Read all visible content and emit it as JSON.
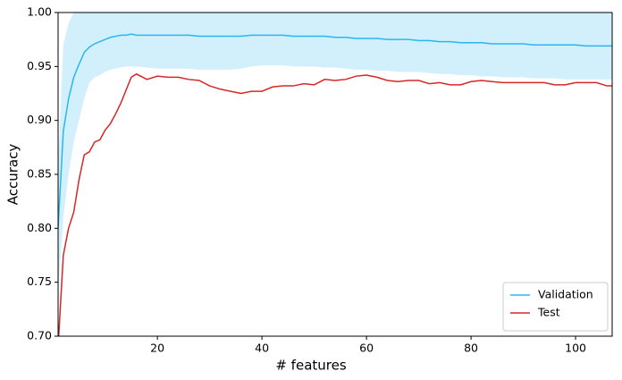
{
  "chart_data": {
    "type": "line",
    "xlabel": "# features",
    "ylabel": "Accuracy",
    "x": [
      1,
      2,
      3,
      4,
      5,
      6,
      7,
      8,
      9,
      10,
      11,
      12,
      13,
      14,
      15,
      16,
      18,
      20,
      22,
      24,
      26,
      28,
      30,
      32,
      34,
      36,
      38,
      40,
      42,
      44,
      46,
      48,
      50,
      52,
      54,
      56,
      58,
      60,
      62,
      64,
      66,
      68,
      70,
      72,
      74,
      76,
      78,
      80,
      82,
      84,
      86,
      88,
      90,
      92,
      94,
      96,
      98,
      100,
      102,
      104,
      106,
      107
    ],
    "xlim": [
      1,
      107
    ],
    "xticks": [
      20,
      40,
      60,
      80,
      100
    ],
    "ylim": [
      0.7,
      1.0
    ],
    "yticks": [
      {
        "value": 0.7,
        "label": "0.70"
      },
      0.75,
      {
        "value": 0.8,
        "label": "0.80"
      },
      0.85,
      {
        "value": 0.9,
        "label": "0.90"
      },
      0.95,
      {
        "value": 1.0,
        "label": "1.00"
      }
    ],
    "legend": "lower right",
    "series": [
      {
        "name": "Validation",
        "color": "#2cb6ee",
        "band_color": "#d2effc",
        "values": [
          0.8,
          0.89,
          0.92,
          0.94,
          0.952,
          0.963,
          0.968,
          0.971,
          0.973,
          0.975,
          0.977,
          0.978,
          0.979,
          0.979,
          0.98,
          0.979,
          0.979,
          0.979,
          0.979,
          0.979,
          0.979,
          0.978,
          0.978,
          0.978,
          0.978,
          0.978,
          0.979,
          0.979,
          0.979,
          0.979,
          0.978,
          0.978,
          0.978,
          0.978,
          0.977,
          0.977,
          0.976,
          0.976,
          0.976,
          0.975,
          0.975,
          0.975,
          0.974,
          0.974,
          0.973,
          0.973,
          0.972,
          0.972,
          0.972,
          0.971,
          0.971,
          0.971,
          0.971,
          0.97,
          0.97,
          0.97,
          0.97,
          0.97,
          0.969,
          0.969,
          0.969,
          0.969
        ],
        "lower": [
          0.74,
          0.81,
          0.85,
          0.88,
          0.9,
          0.92,
          0.935,
          0.94,
          0.942,
          0.945,
          0.947,
          0.948,
          0.949,
          0.95,
          0.95,
          0.95,
          0.949,
          0.948,
          0.948,
          0.948,
          0.948,
          0.947,
          0.947,
          0.947,
          0.947,
          0.948,
          0.95,
          0.951,
          0.951,
          0.951,
          0.95,
          0.95,
          0.95,
          0.949,
          0.949,
          0.948,
          0.947,
          0.947,
          0.946,
          0.946,
          0.945,
          0.945,
          0.945,
          0.944,
          0.943,
          0.943,
          0.942,
          0.942,
          0.941,
          0.941,
          0.94,
          0.94,
          0.94,
          0.939,
          0.939,
          0.939,
          0.938,
          0.938,
          0.938,
          0.938,
          0.938,
          0.938
        ],
        "upper": [
          0.86,
          0.97,
          0.99,
          1.0,
          1.01,
          1.01,
          1.01,
          1.01,
          1.01,
          1.01,
          1.01,
          1.01,
          1.01,
          1.01,
          1.01,
          1.01,
          1.01,
          1.01,
          1.01,
          1.01,
          1.01,
          1.01,
          1.01,
          1.01,
          1.01,
          1.01,
          1.01,
          1.01,
          1.01,
          1.01,
          1.01,
          1.01,
          1.01,
          1.01,
          1.01,
          1.01,
          1.01,
          1.01,
          1.01,
          1.01,
          1.01,
          1.01,
          1.01,
          1.01,
          1.01,
          1.01,
          1.01,
          1.01,
          1.01,
          1.01,
          1.01,
          1.01,
          1.01,
          1.01,
          1.01,
          1.01,
          1.01,
          1.01,
          1.01,
          1.01,
          1.01,
          1.01
        ]
      },
      {
        "name": "Test",
        "color": "#d62728",
        "values": [
          0.69,
          0.775,
          0.8,
          0.815,
          0.845,
          0.868,
          0.871,
          0.88,
          0.882,
          0.891,
          0.897,
          0.906,
          0.916,
          0.928,
          0.94,
          0.943,
          0.938,
          0.941,
          0.94,
          0.94,
          0.938,
          0.937,
          0.932,
          0.929,
          0.927,
          0.925,
          0.927,
          0.927,
          0.931,
          0.932,
          0.932,
          0.934,
          0.933,
          0.938,
          0.937,
          0.938,
          0.941,
          0.942,
          0.94,
          0.937,
          0.936,
          0.937,
          0.937,
          0.934,
          0.935,
          0.933,
          0.933,
          0.936,
          0.937,
          0.936,
          0.935,
          0.935,
          0.935,
          0.935,
          0.935,
          0.933,
          0.933,
          0.935,
          0.935,
          0.935,
          0.932,
          0.932
        ]
      }
    ]
  }
}
